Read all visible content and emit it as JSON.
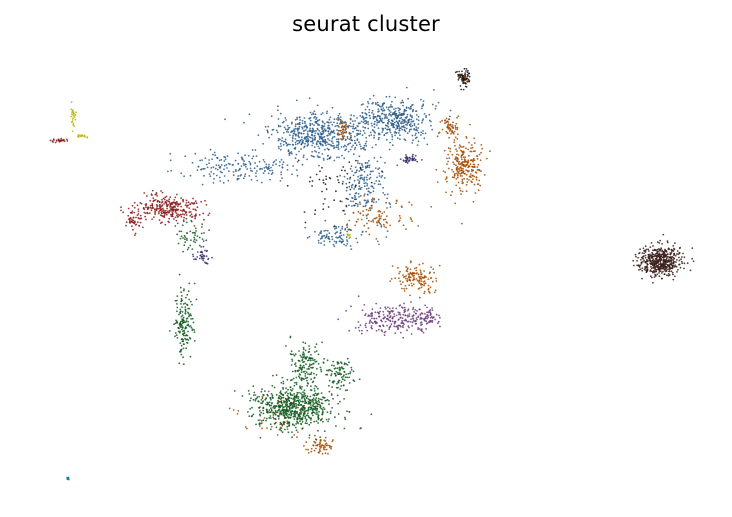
{
  "chart_data": {
    "type": "scatter",
    "title": "seurat cluster",
    "xlabel": "",
    "ylabel": "",
    "axes_visible": false,
    "grid": false,
    "legend": "none",
    "x_range": [
      -12,
      16
    ],
    "y_range": [
      -10,
      9
    ],
    "point_size": "tiny",
    "clusters": [
      {
        "color": "#2e5f8c",
        "shape": "ellipse",
        "center": [
          -0.2,
          5.5
        ],
        "spread": [
          1.8,
          0.9
        ],
        "count": 520
      },
      {
        "color": "#2e5f8c",
        "shape": "ellipse",
        "center": [
          3.0,
          6.2
        ],
        "spread": [
          1.4,
          0.8
        ],
        "count": 420
      },
      {
        "color": "#2e5f8c",
        "shape": "ellipse",
        "center": [
          1.8,
          3.5
        ],
        "spread": [
          0.8,
          1.5
        ],
        "count": 180
      },
      {
        "color": "#2e5f8c",
        "shape": "ellipse",
        "center": [
          -3.6,
          4.2
        ],
        "spread": [
          2.2,
          0.6
        ],
        "count": 180
      },
      {
        "color": "#2e5f8c",
        "shape": "ellipse",
        "center": [
          0.5,
          1.2
        ],
        "spread": [
          1.0,
          0.5
        ],
        "count": 90
      },
      {
        "color": "#a34b00",
        "shape": "ellipse",
        "center": [
          6.0,
          4.2
        ],
        "spread": [
          0.7,
          1.1
        ],
        "count": 240
      },
      {
        "color": "#a34b00",
        "shape": "ellipse",
        "center": [
          5.4,
          5.8
        ],
        "spread": [
          0.4,
          0.5
        ],
        "count": 60
      },
      {
        "color": "#a34b00",
        "shape": "ellipse",
        "center": [
          6.0,
          8.0
        ],
        "spread": [
          0.2,
          0.2
        ],
        "count": 30
      },
      {
        "color": "#a34b00",
        "shape": "ellipse",
        "center": [
          4.0,
          -0.6
        ],
        "spread": [
          0.7,
          0.5
        ],
        "count": 130
      },
      {
        "color": "#a34b00",
        "shape": "ellipse",
        "center": [
          0.8,
          5.8
        ],
        "spread": [
          0.3,
          0.4
        ],
        "count": 40
      },
      {
        "color": "#a34b00",
        "shape": "ellipse",
        "center": [
          2.4,
          2.0
        ],
        "spread": [
          1.2,
          0.8
        ],
        "count": 90
      },
      {
        "color": "#a34b00",
        "shape": "ellipse",
        "center": [
          -0.1,
          -7.9
        ],
        "spread": [
          0.5,
          0.3
        ],
        "count": 60
      },
      {
        "color": "#a34b00",
        "shape": "ellipse",
        "center": [
          -1.8,
          -6.5
        ],
        "spread": [
          1.6,
          0.9
        ],
        "count": 70
      },
      {
        "color": "#1a1a1a",
        "shape": "ellipse",
        "center": [
          6.0,
          8.0
        ],
        "spread": [
          0.3,
          0.35
        ],
        "count": 60
      },
      {
        "color": "#1a1a1a",
        "shape": "ellipse",
        "center": [
          0.6,
          3.2
        ],
        "spread": [
          1.5,
          1.5
        ],
        "count": 60
      },
      {
        "color": "#3a1f1a",
        "shape": "ellipse",
        "center": [
          14.3,
          0.1
        ],
        "spread": [
          0.85,
          0.55
        ],
        "count": 500
      },
      {
        "color": "#0f5a1e",
        "shape": "ellipse",
        "center": [
          -1.2,
          -6.2
        ],
        "spread": [
          1.5,
          0.9
        ],
        "count": 650
      },
      {
        "color": "#0f5a1e",
        "shape": "ellipse",
        "center": [
          -0.8,
          -4.2
        ],
        "spread": [
          0.6,
          0.9
        ],
        "count": 130
      },
      {
        "color": "#0f5a1e",
        "shape": "ellipse",
        "center": [
          -5.9,
          -2.6
        ],
        "spread": [
          0.35,
          1.3
        ],
        "count": 160
      },
      {
        "color": "#0f5a1e",
        "shape": "ellipse",
        "center": [
          0.8,
          -4.8
        ],
        "spread": [
          0.7,
          0.6
        ],
        "count": 90
      },
      {
        "color": "#0f5a1e",
        "shape": "ellipse",
        "center": [
          -5.6,
          1.2
        ],
        "spread": [
          0.6,
          0.6
        ],
        "count": 50
      },
      {
        "color": "#8b1a1a",
        "shape": "ellipse",
        "center": [
          -6.5,
          2.4
        ],
        "spread": [
          1.2,
          0.55
        ],
        "count": 280
      },
      {
        "color": "#8b1a1a",
        "shape": "ellipse",
        "center": [
          -8.0,
          1.9
        ],
        "spread": [
          0.35,
          0.45
        ],
        "count": 50
      },
      {
        "color": "#8b1a1a",
        "shape": "ellipse",
        "center": [
          -11.2,
          5.3
        ],
        "spread": [
          0.4,
          0.08
        ],
        "count": 25
      },
      {
        "color": "#6b3d7a",
        "shape": "ellipse",
        "center": [
          2.9,
          -2.4
        ],
        "spread": [
          1.4,
          0.6
        ],
        "count": 220
      },
      {
        "color": "#6b3d7a",
        "shape": "ellipse",
        "center": [
          4.4,
          -2.3
        ],
        "spread": [
          0.6,
          0.35
        ],
        "count": 60
      },
      {
        "color": "#3d2f6e",
        "shape": "ellipse",
        "center": [
          3.7,
          4.5
        ],
        "spread": [
          0.35,
          0.15
        ],
        "count": 45
      },
      {
        "color": "#3d2f6e",
        "shape": "ellipse",
        "center": [
          -5.1,
          0.3
        ],
        "spread": [
          0.35,
          0.35
        ],
        "count": 40
      },
      {
        "color": "#b5b800",
        "shape": "ellipse",
        "center": [
          -10.6,
          6.4
        ],
        "spread": [
          0.12,
          0.5
        ],
        "count": 25
      },
      {
        "color": "#b5b800",
        "shape": "ellipse",
        "center": [
          -10.2,
          5.5
        ],
        "spread": [
          0.25,
          0.12
        ],
        "count": 15
      },
      {
        "color": "#b5b800",
        "shape": "ellipse",
        "center": [
          1.1,
          1.2
        ],
        "spread": [
          0.1,
          0.12
        ],
        "count": 8
      },
      {
        "color": "#00838f",
        "shape": "ellipse",
        "center": [
          -10.8,
          -9.3
        ],
        "spread": [
          0.05,
          0.05
        ],
        "count": 8
      }
    ]
  }
}
